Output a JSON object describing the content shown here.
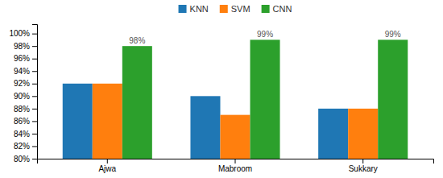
{
  "chart_data": {
    "type": "bar",
    "categories": [
      "Ajwa",
      "Mabroom",
      "Sukkary"
    ],
    "series": [
      {
        "name": "KNN",
        "values": [
          92,
          90,
          88
        ]
      },
      {
        "name": "SVM",
        "values": [
          92,
          87,
          88
        ]
      },
      {
        "name": "CNN",
        "values": [
          98,
          99,
          99
        ],
        "value_labels": [
          "98%",
          "99%",
          "99%"
        ],
        "data_labels": true
      }
    ],
    "ylim": [
      80,
      101.5
    ],
    "yticks": [
      {
        "value": 80,
        "label": "80%"
      },
      {
        "value": 82,
        "label": "82%"
      },
      {
        "value": 84,
        "label": "84%"
      },
      {
        "value": 86,
        "label": "86%"
      },
      {
        "value": 88,
        "label": "88%"
      },
      {
        "value": 90,
        "label": "90%"
      },
      {
        "value": 92,
        "label": "92%"
      },
      {
        "value": 94,
        "label": "94%"
      },
      {
        "value": 96,
        "label": "96%"
      },
      {
        "value": 98,
        "label": "98%"
      },
      {
        "value": 100,
        "label": "100%"
      }
    ],
    "grid": false,
    "legend": "top"
  }
}
